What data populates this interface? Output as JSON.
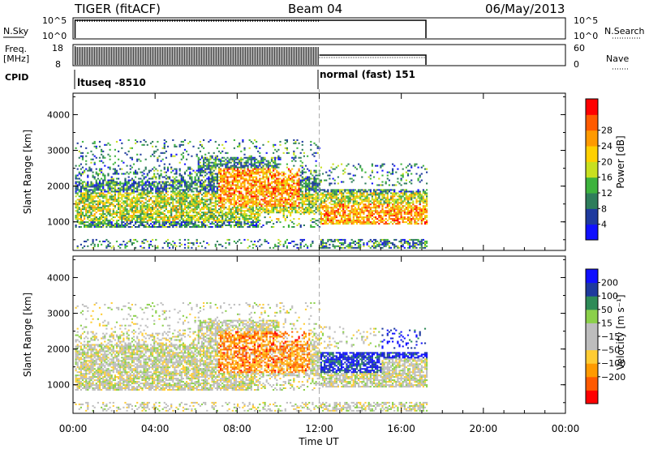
{
  "header": {
    "title": "TIGER (fitACF)",
    "beam": "Beam 04",
    "date": "06/May/2013"
  },
  "nsky_panel": {
    "left_label": "N.Sky",
    "left_ticks": [
      "10^5",
      "10^0"
    ],
    "right_ticks": [
      "10^5",
      "10^0"
    ],
    "right_label": "N.Search"
  },
  "freq_panel": {
    "left_label_1": "Freq.",
    "left_label_2": "[MHz]",
    "left_ticks": [
      "18",
      "8"
    ],
    "right_ticks": [
      "60",
      "0"
    ],
    "right_label": "Nave"
  },
  "cpid": {
    "label": "CPID",
    "mode_1": "ltuseq -8510",
    "mode_2": "normal (fast) 151"
  },
  "colors": {
    "power": [
      "#1010ff",
      "#1e3a9e",
      "#2e7d5b",
      "#3db33d",
      "#c8e020",
      "#ffd000",
      "#ff9a00",
      "#ff5a00",
      "#ff0000"
    ],
    "velocity": [
      "#ff0000",
      "#ff5a00",
      "#ff9a00",
      "#ffcc33",
      "#bdbdbd",
      "#bdbdbd",
      "#8bd04a",
      "#2e8b57",
      "#1e3a9e",
      "#1010ff"
    ]
  },
  "chart_data": [
    {
      "type": "heatmap",
      "name": "power",
      "ylabel": "Slant Range [km]",
      "xlim": [
        0,
        24
      ],
      "ylim": [
        200,
        4600
      ],
      "yticks": [
        "1000",
        "2000",
        "3000",
        "4000"
      ],
      "colorbar_label": "Power [dB]",
      "colorbar_ticks": [
        "4",
        "8",
        "12",
        "16",
        "20",
        "24",
        "28"
      ],
      "colorbar_range": [
        0,
        32
      ],
      "data_extent_hours": [
        0.1,
        17.2
      ],
      "mode_change_hour": 12
    },
    {
      "type": "heatmap",
      "name": "velocity",
      "ylabel": "Slant Range [km]",
      "xlim": [
        0,
        24
      ],
      "ylim": [
        200,
        4600
      ],
      "yticks": [
        "1000",
        "2000",
        "3000",
        "4000"
      ],
      "colorbar_label": "Velocity [m s⁻¹]",
      "colorbar_ticks": [
        "200",
        "100",
        "50",
        "15",
        "−15",
        "−50",
        "−100",
        "−200"
      ],
      "data_extent_hours": [
        0.1,
        17.2
      ],
      "mode_change_hour": 12
    }
  ],
  "x_axis": {
    "ticks": [
      "00:00",
      "04:00",
      "08:00",
      "12:00",
      "16:00",
      "20:00",
      "00:00"
    ],
    "label": "Time UT"
  }
}
